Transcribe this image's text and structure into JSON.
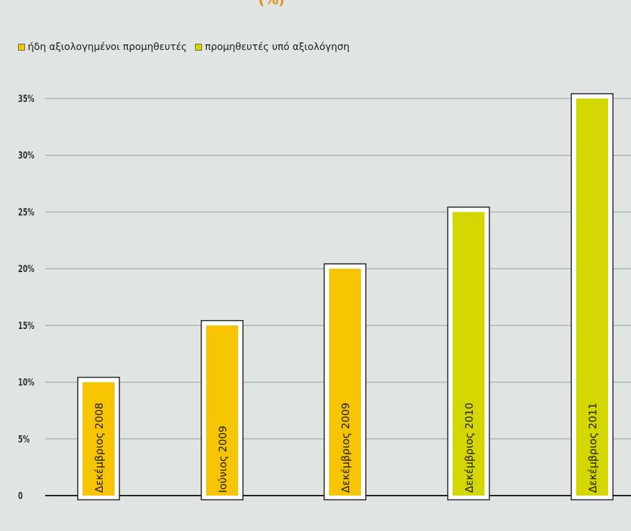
{
  "colors": {
    "background": "#e0e4e2",
    "gridline": "#a9b7b1",
    "axis": "#1f1f1f",
    "series_1": "#f6c400",
    "series_2": "#d3d600",
    "title_fragment": "#e6911e"
  },
  "title": {
    "visible_fragment": "(%)"
  },
  "legend": {
    "items": [
      {
        "label": "ήδη αξιολογημένοι προμηθευτές",
        "color": "#f6c400"
      },
      {
        "label": "προμηθευτές υπό αξιολόγηση",
        "color": "#d3d600"
      }
    ]
  },
  "chart_data": {
    "type": "bar",
    "categories": [
      "Δεκέμβριος 2008",
      "Ιούνιος 2009",
      "Δεκέμβριος 2009",
      "Δεκέμβριος 2010",
      "Δεκέμβριος 2011"
    ],
    "series": [
      {
        "name": "ήδη αξιολογημένοι προμηθευτές",
        "values": [
          10,
          15,
          20,
          null,
          null
        ],
        "color": "#f6c400"
      },
      {
        "name": "προμηθευτές υπό αξιολόγηση",
        "values": [
          null,
          null,
          null,
          25,
          35
        ],
        "color": "#d3d600"
      }
    ],
    "y_ticks": [
      "0",
      "5%",
      "10%",
      "15%",
      "20%",
      "25%",
      "30%",
      "35%"
    ],
    "ylim": [
      0,
      35
    ],
    "grid": true,
    "legend_position": "top-left",
    "xlabel": "",
    "ylabel": ""
  }
}
